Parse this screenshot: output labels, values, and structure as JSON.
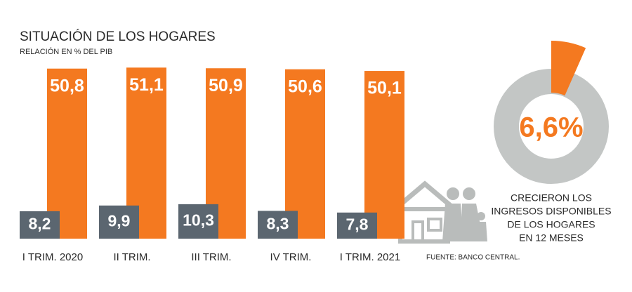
{
  "chart_data": [
    {
      "type": "bar",
      "title": "SITUACIÓN DE LOS HOGARES",
      "subtitle": "RELACIÓN EN % DEL PIB",
      "categories": [
        "I TRIM. 2020",
        "II TRIM.",
        "III TRIM.",
        "IV TRIM.",
        "I TRIM. 2021"
      ],
      "series": [
        {
          "color": "#f47920",
          "values": [
            50.8,
            51.1,
            50.9,
            50.6,
            50.1
          ],
          "value_labels": [
            "50,8",
            "51,1",
            "50,9",
            "50,6",
            "50,1"
          ]
        },
        {
          "color": "#5b6670",
          "values": [
            8.2,
            9.9,
            10.3,
            8.3,
            7.8
          ],
          "value_labels": [
            "8,2",
            "9,9",
            "10,3",
            "8,3",
            "7,8"
          ]
        }
      ],
      "ylim": [
        0,
        52
      ],
      "source": "FUENTE: BANCO CENTRAL."
    },
    {
      "type": "pie",
      "values": [
        6.6
      ],
      "value_labels": [
        "6,6%"
      ],
      "color": "#f47920",
      "annotation": [
        "CRECIERON LOS",
        "INGRESOS DISPONIBLES",
        "DE LOS HOGARES",
        "EN 12 MESES"
      ]
    }
  ]
}
